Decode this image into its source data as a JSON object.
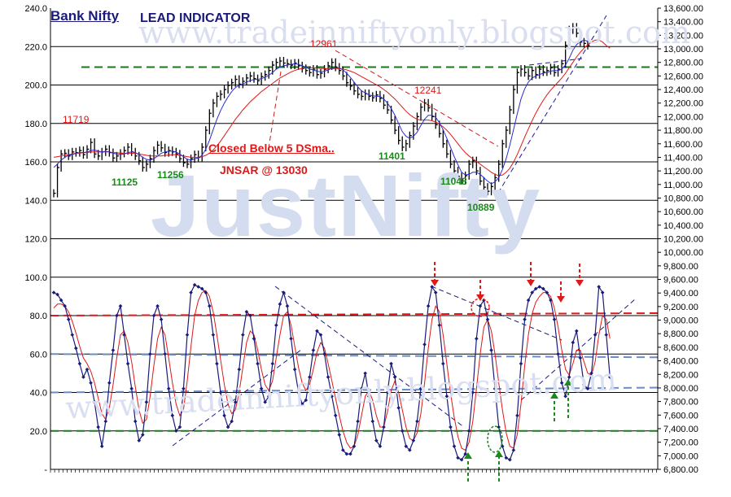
{
  "chart_data": {
    "type": "line",
    "title": "Bank Nifty",
    "subtitle": "LEAD INDICATOR",
    "watermarks": [
      "JustNifty",
      "www.tradeinniftyonly.blogspot.com",
      "www.tradeinniftyonly.blogspot.com"
    ],
    "left_axis": {
      "ylim": [
        0,
        240
      ],
      "tick_labels": [
        "240.0",
        "220.0",
        "200.0",
        "180.0",
        "160.0",
        "140.0",
        "120.0",
        "100.0",
        "80.0",
        "60.0",
        "40.0",
        "20.0",
        "-"
      ]
    },
    "right_axis": {
      "ylim": [
        6800,
        13600
      ],
      "tick_labels": [
        "13,600.00",
        "13,400.00",
        "13,200.00",
        "13,000.00",
        "12,800.00",
        "12,600.00",
        "12,400.00",
        "12,200.00",
        "12,000.00",
        "11,800.00",
        "11,600.00",
        "11,400.00",
        "11,200.00",
        "11,000.00",
        "10,800.00",
        "10,600.00",
        "10,400.00",
        "10,200.00",
        "10,000.00",
        "9,800.00",
        "9,600.00",
        "9,400.00",
        "9,200.00",
        "9,000.00",
        "8,800.00",
        "8,600.00",
        "8,400.00",
        "8,200.00",
        "8,000.00",
        "7,800.00",
        "7,600.00",
        "7,400.00",
        "7,200.00",
        "7,000.00",
        "6,800.00"
      ]
    },
    "price_labels": [
      {
        "text": "11719",
        "color": "red"
      },
      {
        "text": "12961",
        "color": "red"
      },
      {
        "text": "12241",
        "color": "red"
      },
      {
        "text": "11125",
        "color": "green"
      },
      {
        "text": "11256",
        "color": "green"
      },
      {
        "text": "11401",
        "color": "green"
      },
      {
        "text": "11048",
        "color": "green"
      },
      {
        "text": "10889",
        "color": "green"
      }
    ],
    "annotations": [
      "Closed  Below 5 DSma..",
      "JNSAR @ 13030"
    ],
    "horizontal_levels": {
      "price_resistance_dashed_green": 12730,
      "indicator_red_dashed": 80,
      "indicator_blue_dashed": 60,
      "indicator_blue_dashed_lower": 40,
      "indicator_green_dashed": 20
    },
    "price_series": {
      "name": "",
      "color": "#000000",
      "y": [
        10870,
        11250,
        11450,
        11460,
        11420,
        11480,
        11470,
        11500,
        11440,
        11520,
        11620,
        11450,
        11420,
        11480,
        11520,
        11470,
        11390,
        11420,
        11460,
        11500,
        11550,
        11480,
        11420,
        11350,
        11250,
        11300,
        11380,
        11500,
        11580,
        11540,
        11470,
        11500,
        11480,
        11450,
        11380,
        11320,
        11300,
        11380,
        11440,
        11400,
        11550,
        11800,
        12050,
        12200,
        12300,
        12330,
        12400,
        12460,
        12500,
        12550,
        12480,
        12520,
        12570,
        12600,
        12560,
        12530,
        12590,
        12620,
        12680,
        12760,
        12800,
        12820,
        12790,
        12780,
        12760,
        12790,
        12750,
        12710,
        12680,
        12650,
        12700,
        12620,
        12640,
        12700,
        12750,
        12800,
        12730,
        12680,
        12600,
        12500,
        12450,
        12380,
        12330,
        12300,
        12340,
        12300,
        12280,
        12320,
        12270,
        12170,
        12100,
        11950,
        11800,
        11650,
        11550,
        11600,
        11720,
        11860,
        12000,
        12140,
        12200,
        12130,
        12000,
        11880,
        11750,
        11600,
        11450,
        11300,
        11200,
        11120,
        11060,
        11130,
        11300,
        11350,
        11200,
        11050,
        10960,
        10900,
        10970,
        11100,
        11300,
        11600,
        11800,
        12100,
        12400,
        12650,
        12700,
        12650,
        12600,
        12680,
        12620,
        12700,
        12660,
        12680,
        12720,
        12650,
        12700,
        12780,
        13050,
        13280,
        13320,
        13230,
        13100,
        13080,
        13050
      ]
    },
    "price_fast_ma": {
      "name": "",
      "color": "#2b2bd6",
      "y": [
        11250,
        11300,
        11360,
        11400,
        11430,
        11440,
        11460,
        11470,
        11470,
        11480,
        11500,
        11510,
        11490,
        11480,
        11490,
        11480,
        11460,
        11450,
        11440,
        11450,
        11470,
        11480,
        11470,
        11440,
        11400,
        11370,
        11360,
        11380,
        11420,
        11460,
        11480,
        11490,
        11490,
        11480,
        11450,
        11410,
        11370,
        11360,
        11380,
        11390,
        11430,
        11520,
        11650,
        11810,
        11960,
        12090,
        12200,
        12290,
        12370,
        12430,
        12460,
        12480,
        12510,
        12530,
        12550,
        12550,
        12560,
        12580,
        12610,
        12650,
        12700,
        12730,
        12750,
        12760,
        12770,
        12780,
        12770,
        12750,
        12730,
        12700,
        12690,
        12670,
        12660,
        12670,
        12690,
        12710,
        12720,
        12720,
        12690,
        12640,
        12580,
        12510,
        12440,
        12380,
        12350,
        12320,
        12310,
        12300,
        12300,
        12260,
        12200,
        12120,
        12020,
        11900,
        11780,
        11710,
        11680,
        11710,
        11770,
        11870,
        11960,
        12020,
        12020,
        11990,
        11910,
        11810,
        11680,
        11550,
        11410,
        11290,
        11180,
        11140,
        11150,
        11180,
        11180,
        11150,
        11100,
        11050,
        11010,
        11040,
        11100,
        11220,
        11380,
        11580,
        11810,
        12040,
        12260,
        12410,
        12510,
        12570,
        12600,
        12620,
        12640,
        12650,
        12670,
        12680,
        12680,
        12700,
        12760,
        12860,
        12980,
        13060,
        13110,
        13130,
        13110
      ]
    },
    "price_slow_ma": {
      "name": "",
      "color": "#e01818",
      "y": [
        11400,
        11410,
        11420,
        11430,
        11440,
        11450,
        11460,
        11460,
        11470,
        11470,
        11480,
        11480,
        11480,
        11480,
        11480,
        11480,
        11470,
        11470,
        11460,
        11460,
        11460,
        11460,
        11460,
        11450,
        11440,
        11430,
        11420,
        11420,
        11420,
        11420,
        11430,
        11430,
        11440,
        11440,
        11430,
        11420,
        11410,
        11400,
        11400,
        11400,
        11410,
        11430,
        11460,
        11510,
        11570,
        11640,
        11720,
        11800,
        11880,
        11960,
        12030,
        12100,
        12160,
        12220,
        12270,
        12320,
        12370,
        12410,
        12450,
        12490,
        12530,
        12570,
        12600,
        12630,
        12660,
        12680,
        12700,
        12710,
        12720,
        12720,
        12720,
        12720,
        12710,
        12710,
        12710,
        12710,
        12710,
        12710,
        12700,
        12690,
        12670,
        12650,
        12620,
        12590,
        12560,
        12530,
        12500,
        12470,
        12440,
        12400,
        12360,
        12310,
        12260,
        12200,
        12140,
        12080,
        12030,
        11990,
        11960,
        11950,
        11950,
        11950,
        11940,
        11920,
        11890,
        11850,
        11800,
        11740,
        11670,
        11600,
        11530,
        11470,
        11420,
        11380,
        11340,
        11300,
        11260,
        11220,
        11180,
        11150,
        11130,
        11140,
        11180,
        11240,
        11330,
        11440,
        11570,
        11700,
        11820,
        11940,
        12050,
        12150,
        12240,
        12320,
        12390,
        12450,
        12510,
        12570,
        12640,
        12720,
        12800,
        12880,
        12950,
        13010,
        13060,
        13100,
        13130,
        13130,
        13100,
        13050,
        13010
      ]
    },
    "indicator_series": {
      "name": "",
      "color": "#1a1a7a",
      "y": [
        92,
        91,
        88,
        85,
        78,
        70,
        63,
        55,
        48,
        52,
        45,
        35,
        22,
        12,
        25,
        45,
        62,
        80,
        85,
        70,
        55,
        42,
        25,
        15,
        18,
        35,
        60,
        80,
        85,
        78,
        60,
        42,
        28,
        20,
        22,
        42,
        70,
        92,
        96,
        95,
        94,
        92,
        85,
        70,
        55,
        40,
        28,
        22,
        25,
        35,
        52,
        70,
        82,
        80,
        68,
        55,
        42,
        35,
        38,
        55,
        75,
        86,
        92,
        85,
        68,
        52,
        40,
        34,
        36,
        48,
        62,
        72,
        70,
        60,
        48,
        38,
        28,
        18,
        10,
        8,
        8,
        12,
        25,
        42,
        50,
        38,
        25,
        15,
        12,
        22,
        40,
        55,
        48,
        32,
        20,
        12,
        10,
        15,
        25,
        42,
        65,
        85,
        95,
        92,
        75,
        55,
        38,
        22,
        12,
        6,
        5,
        8,
        20,
        40,
        68,
        85,
        88,
        78,
        62,
        42,
        22,
        12,
        6,
        5,
        10,
        28,
        55,
        78,
        88,
        92,
        94,
        95,
        94,
        92,
        88,
        78,
        60,
        45,
        38,
        48,
        66,
        72,
        58,
        44,
        42,
        50,
        70,
        95,
        92,
        70,
        48
      ]
    },
    "indicator_signal": {
      "name": "",
      "color": "#e01818",
      "y": [
        84,
        86,
        86,
        85,
        82,
        77,
        71,
        64,
        58,
        55,
        51,
        45,
        37,
        29,
        26,
        32,
        44,
        58,
        70,
        72,
        66,
        56,
        43,
        31,
        24,
        26,
        38,
        54,
        68,
        74,
        70,
        58,
        45,
        34,
        28,
        31,
        46,
        64,
        80,
        88,
        92,
        93,
        90,
        82,
        70,
        57,
        44,
        34,
        29,
        31,
        40,
        53,
        66,
        72,
        70,
        62,
        52,
        44,
        41,
        46,
        58,
        70,
        80,
        82,
        75,
        64,
        53,
        45,
        41,
        44,
        52,
        61,
        66,
        63,
        55,
        46,
        37,
        28,
        20,
        14,
        11,
        12,
        18,
        28,
        38,
        41,
        36,
        28,
        22,
        22,
        30,
        41,
        46,
        40,
        31,
        22,
        16,
        15,
        19,
        29,
        45,
        63,
        78,
        85,
        82,
        70,
        55,
        40,
        27,
        17,
        11,
        10,
        14,
        25,
        42,
        60,
        74,
        78,
        72,
        60,
        45,
        31,
        19,
        12,
        11,
        18,
        34,
        54,
        70,
        81,
        87,
        90,
        92,
        92,
        90,
        84,
        74,
        62,
        52,
        49,
        55,
        62,
        62,
        56,
        50,
        49,
        56,
        70,
        80,
        78,
        68
      ]
    }
  }
}
